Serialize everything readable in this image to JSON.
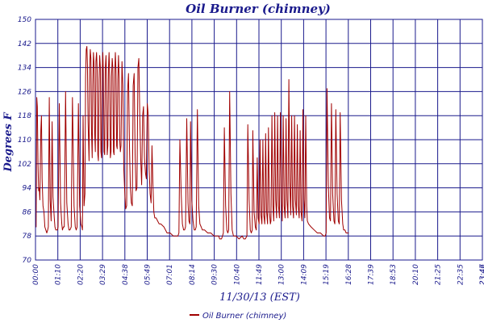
{
  "chart_data": {
    "type": "line",
    "title": "Oil Burner (chimney)",
    "xlabel": "11/30/13 (EST)",
    "ylabel": "Degrees F",
    "ylim": [
      70,
      150
    ],
    "yticks": [
      "70",
      "78",
      "86",
      "94",
      "102",
      "110",
      "118",
      "126",
      "134",
      "142",
      "150"
    ],
    "xticks": [
      "00:00",
      "01:10",
      "02:20",
      "03:29",
      "04:38",
      "05:49",
      "07:01",
      "08:14",
      "09:30",
      "10:40",
      "11:49",
      "13:00",
      "14:09",
      "15:19",
      "16:28",
      "17:39",
      "18:53",
      "20:10",
      "21:25",
      "22:35",
      "23:46",
      "23:47"
    ],
    "xlim_minutes": [
      0,
      1427
    ],
    "grid": true,
    "legend_position": "bottom-center",
    "colors": {
      "series": "#a00000",
      "grid": "#1a1a8c",
      "text": "#1a1a8c"
    },
    "series": [
      {
        "name": "Oil Burner (chimney)",
        "points": [
          [
            0,
            81
          ],
          [
            2,
            81
          ],
          [
            4,
            124
          ],
          [
            6,
            121
          ],
          [
            8,
            102
          ],
          [
            10,
            93
          ],
          [
            12,
            94
          ],
          [
            14,
            90
          ],
          [
            17,
            113
          ],
          [
            19,
            118
          ],
          [
            21,
            97
          ],
          [
            24,
            88
          ],
          [
            27,
            86
          ],
          [
            30,
            81
          ],
          [
            33,
            80
          ],
          [
            36,
            79
          ],
          [
            39,
            80
          ],
          [
            41,
            81
          ],
          [
            44,
            124
          ],
          [
            47,
            90
          ],
          [
            50,
            83
          ],
          [
            53,
            116
          ],
          [
            56,
            91
          ],
          [
            60,
            84
          ],
          [
            62,
            81
          ],
          [
            65,
            80
          ],
          [
            70,
            80
          ],
          [
            72,
            81
          ],
          [
            76,
            122
          ],
          [
            80,
            89
          ],
          [
            84,
            82
          ],
          [
            86,
            80
          ],
          [
            89,
            81
          ],
          [
            92,
            81
          ],
          [
            96,
            126
          ],
          [
            100,
            89
          ],
          [
            104,
            82
          ],
          [
            107,
            80
          ],
          [
            110,
            80
          ],
          [
            114,
            81
          ],
          [
            118,
            124
          ],
          [
            123,
            88
          ],
          [
            127,
            81
          ],
          [
            130,
            80
          ],
          [
            133,
            81
          ],
          [
            137,
            122
          ],
          [
            141,
            88
          ],
          [
            145,
            82
          ],
          [
            148,
            81
          ],
          [
            150,
            80
          ],
          [
            152,
            118
          ],
          [
            155,
            88
          ],
          [
            158,
            92
          ],
          [
            160,
            131
          ],
          [
            162,
            140
          ],
          [
            164,
            141
          ],
          [
            166,
            135
          ],
          [
            168,
            116
          ],
          [
            171,
            103
          ],
          [
            173,
            134
          ],
          [
            175,
            140
          ],
          [
            177,
            137
          ],
          [
            179,
            112
          ],
          [
            181,
            104
          ],
          [
            183,
            128
          ],
          [
            185,
            139
          ],
          [
            187,
            135
          ],
          [
            189,
            112
          ],
          [
            191,
            106
          ],
          [
            193,
            136
          ],
          [
            195,
            139
          ],
          [
            197,
            133
          ],
          [
            199,
            105
          ],
          [
            201,
            103
          ],
          [
            203,
            130
          ],
          [
            205,
            138
          ],
          [
            207,
            134
          ],
          [
            209,
            106
          ],
          [
            211,
            104
          ],
          [
            213,
            133
          ],
          [
            215,
            139
          ],
          [
            217,
            132
          ],
          [
            219,
            106
          ],
          [
            221,
            105
          ],
          [
            223,
            134
          ],
          [
            225,
            138
          ],
          [
            227,
            130
          ],
          [
            229,
            105
          ],
          [
            231,
            108
          ],
          [
            233,
            134
          ],
          [
            235,
            139
          ],
          [
            237,
            131
          ],
          [
            239,
            104
          ],
          [
            241,
            106
          ],
          [
            243,
            131
          ],
          [
            245,
            137
          ],
          [
            247,
            134
          ],
          [
            249,
            106
          ],
          [
            251,
            105
          ],
          [
            253,
            131
          ],
          [
            255,
            139
          ],
          [
            257,
            133
          ],
          [
            259,
            108
          ],
          [
            261,
            107
          ],
          [
            263,
            130
          ],
          [
            265,
            138
          ],
          [
            267,
            131
          ],
          [
            269,
            110
          ],
          [
            271,
            106
          ],
          [
            273,
            108
          ],
          [
            276,
            136
          ],
          [
            279,
            128
          ],
          [
            282,
            100
          ],
          [
            285,
            93
          ],
          [
            288,
            87
          ],
          [
            291,
            88
          ],
          [
            294,
            126
          ],
          [
            297,
            132
          ],
          [
            300,
            108
          ],
          [
            303,
            94
          ],
          [
            306,
            89
          ],
          [
            309,
            88
          ],
          [
            312,
            128
          ],
          [
            315,
            132
          ],
          [
            318,
            105
          ],
          [
            321,
            93
          ],
          [
            324,
            94
          ],
          [
            327,
            134
          ],
          [
            330,
            137
          ],
          [
            333,
            118
          ],
          [
            336,
            104
          ],
          [
            339,
            95
          ],
          [
            342,
            118
          ],
          [
            345,
            121
          ],
          [
            348,
            104
          ],
          [
            351,
            99
          ],
          [
            354,
            97
          ],
          [
            357,
            122
          ],
          [
            360,
            118
          ],
          [
            363,
            100
          ],
          [
            366,
            92
          ],
          [
            369,
            89
          ],
          [
            372,
            108
          ],
          [
            375,
            95
          ],
          [
            378,
            86
          ],
          [
            381,
            84
          ],
          [
            385,
            84
          ],
          [
            390,
            83
          ],
          [
            395,
            82
          ],
          [
            400,
            82
          ],
          [
            410,
            81
          ],
          [
            420,
            79
          ],
          [
            430,
            79
          ],
          [
            440,
            78
          ],
          [
            450,
            78
          ],
          [
            455,
            78
          ],
          [
            458,
            79
          ],
          [
            461,
            110
          ],
          [
            465,
            93
          ],
          [
            469,
            82
          ],
          [
            473,
            80
          ],
          [
            476,
            80
          ],
          [
            479,
            81
          ],
          [
            483,
            117
          ],
          [
            487,
            89
          ],
          [
            490,
            83
          ],
          [
            493,
            82
          ],
          [
            495,
            116
          ],
          [
            499,
            90
          ],
          [
            503,
            83
          ],
          [
            507,
            80
          ],
          [
            510,
            80
          ],
          [
            513,
            81
          ],
          [
            517,
            120
          ],
          [
            521,
            88
          ],
          [
            525,
            82
          ],
          [
            529,
            81
          ],
          [
            533,
            80
          ],
          [
            540,
            80
          ],
          [
            550,
            79
          ],
          [
            560,
            79
          ],
          [
            570,
            78
          ],
          [
            580,
            78
          ],
          [
            585,
            78
          ],
          [
            588,
            77
          ],
          [
            591,
            77
          ],
          [
            594,
            77
          ],
          [
            597,
            78
          ],
          [
            600,
            79
          ],
          [
            603,
            114
          ],
          [
            607,
            88
          ],
          [
            611,
            80
          ],
          [
            614,
            79
          ],
          [
            617,
            80
          ],
          [
            620,
            126
          ],
          [
            624,
            92
          ],
          [
            628,
            80
          ],
          [
            632,
            78
          ],
          [
            640,
            78
          ],
          [
            650,
            77
          ],
          [
            660,
            78
          ],
          [
            665,
            77
          ],
          [
            670,
            77
          ],
          [
            675,
            78
          ],
          [
            678,
            115
          ],
          [
            682,
            90
          ],
          [
            686,
            80
          ],
          [
            689,
            79
          ],
          [
            692,
            80
          ],
          [
            694,
            113
          ],
          [
            698,
            86
          ],
          [
            702,
            81
          ],
          [
            705,
            80
          ],
          [
            708,
            104
          ],
          [
            711,
            84
          ],
          [
            714,
            82
          ],
          [
            717,
            110
          ],
          [
            720,
            85
          ],
          [
            723,
            82
          ],
          [
            726,
            110
          ],
          [
            729,
            85
          ],
          [
            732,
            82
          ],
          [
            735,
            112
          ],
          [
            738,
            86
          ],
          [
            741,
            82
          ],
          [
            744,
            114
          ],
          [
            747,
            86
          ],
          [
            750,
            82
          ],
          [
            752,
            83
          ],
          [
            755,
            118
          ],
          [
            758,
            88
          ],
          [
            761,
            83
          ],
          [
            764,
            119
          ],
          [
            767,
            90
          ],
          [
            770,
            84
          ],
          [
            773,
            118
          ],
          [
            776,
            88
          ],
          [
            779,
            84
          ],
          [
            782,
            119
          ],
          [
            785,
            90
          ],
          [
            788,
            83
          ],
          [
            791,
            118
          ],
          [
            794,
            88
          ],
          [
            797,
            84
          ],
          [
            800,
            117
          ],
          [
            803,
            90
          ],
          [
            806,
            84
          ],
          [
            809,
            130
          ],
          [
            812,
            96
          ],
          [
            815,
            85
          ],
          [
            818,
            118
          ],
          [
            821,
            88
          ],
          [
            824,
            84
          ],
          [
            827,
            118
          ],
          [
            830,
            90
          ],
          [
            833,
            85
          ],
          [
            836,
            115
          ],
          [
            839,
            88
          ],
          [
            842,
            84
          ],
          [
            845,
            113
          ],
          [
            848,
            86
          ],
          [
            851,
            83
          ],
          [
            854,
            120
          ],
          [
            857,
            90
          ],
          [
            860,
            84
          ],
          [
            863,
            118
          ],
          [
            866,
            88
          ],
          [
            868,
            83
          ],
          [
            872,
            82
          ],
          [
            880,
            81
          ],
          [
            890,
            80
          ],
          [
            900,
            79
          ],
          [
            910,
            79
          ],
          [
            920,
            78
          ],
          [
            925,
            78
          ],
          [
            928,
            79
          ],
          [
            931,
            127
          ],
          [
            935,
            95
          ],
          [
            939,
            84
          ],
          [
            942,
            83
          ],
          [
            945,
            122
          ],
          [
            949,
            92
          ],
          [
            953,
            83
          ],
          [
            956,
            82
          ],
          [
            959,
            120
          ],
          [
            963,
            92
          ],
          [
            967,
            83
          ],
          [
            970,
            82
          ],
          [
            973,
            119
          ],
          [
            977,
            90
          ],
          [
            981,
            82
          ],
          [
            984,
            80
          ],
          [
            988,
            80
          ],
          [
            992,
            79
          ],
          [
            996,
            79
          ],
          [
            1000,
            79
          ]
        ]
      }
    ]
  }
}
